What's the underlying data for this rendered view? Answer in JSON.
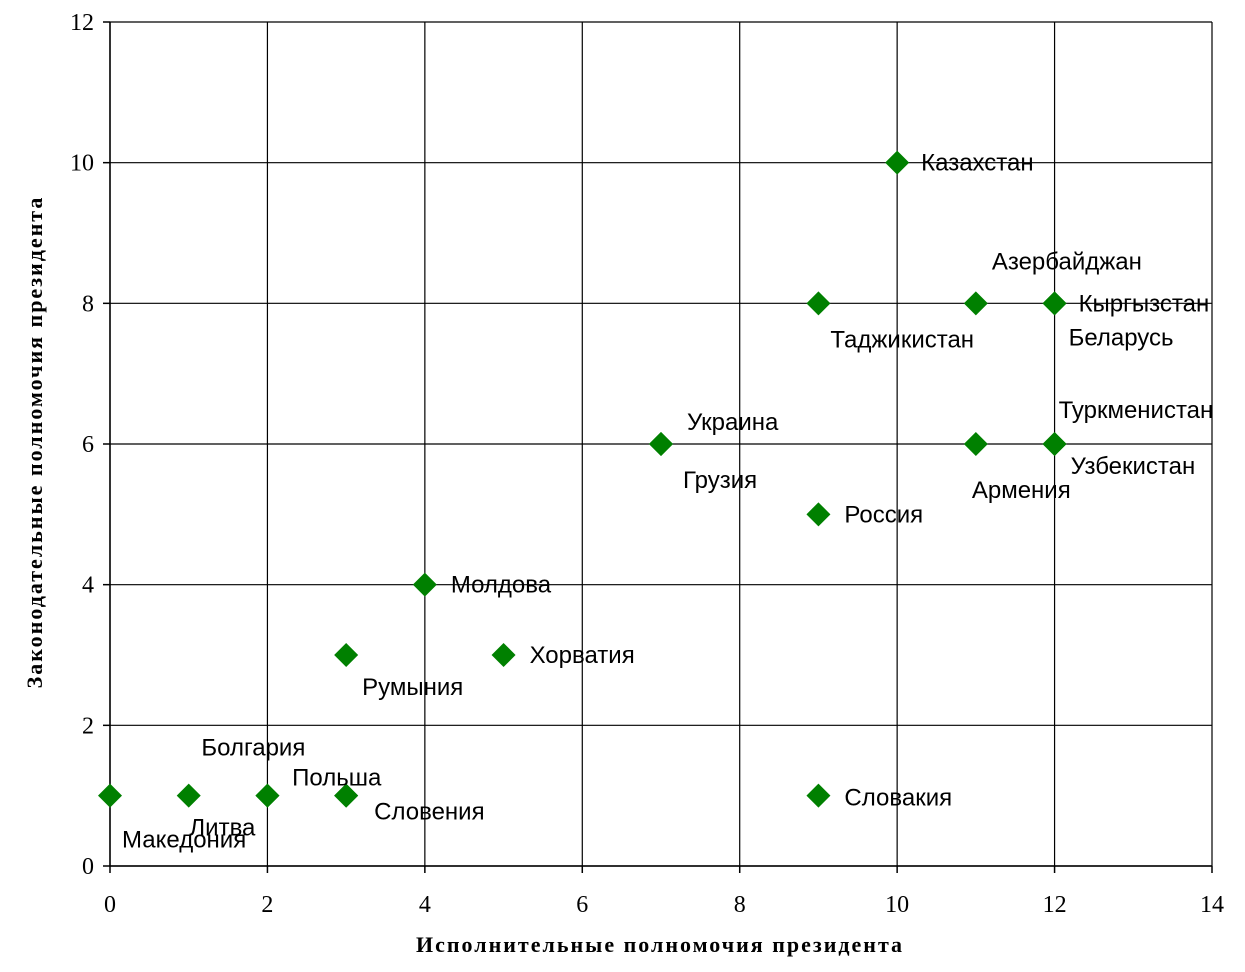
{
  "chart_data": {
    "type": "scatter",
    "title": "",
    "xlabel": "Исполнительные полномочия президента",
    "ylabel": "Законодательные полномочия президента",
    "xlim": [
      0,
      14
    ],
    "ylim": [
      0,
      12
    ],
    "xticks": [
      0,
      2,
      4,
      6,
      8,
      10,
      12,
      14
    ],
    "yticks": [
      0,
      2,
      4,
      6,
      8,
      10,
      12
    ],
    "grid": true,
    "marker": "diamond",
    "marker_color": "#008000",
    "points": [
      {
        "label": "Казахстан",
        "x": 10,
        "y": 10
      },
      {
        "label": "Азербайджан",
        "x": 11,
        "y": 8
      },
      {
        "label": "Таджикистан",
        "x": 9,
        "y": 8
      },
      {
        "label": "Кыргызстан",
        "x": 12,
        "y": 8
      },
      {
        "label": "Беларусь",
        "x": 12,
        "y": 8
      },
      {
        "label": "Украина",
        "x": 7,
        "y": 6
      },
      {
        "label": "Грузия",
        "x": 7,
        "y": 6
      },
      {
        "label": "Туркменистан",
        "x": 12,
        "y": 6
      },
      {
        "label": "Узбекистан",
        "x": 12,
        "y": 6
      },
      {
        "label": "Армения",
        "x": 11,
        "y": 6
      },
      {
        "label": "Россия",
        "x": 9,
        "y": 5
      },
      {
        "label": "Молдова",
        "x": 4,
        "y": 4
      },
      {
        "label": "Хорватия",
        "x": 5,
        "y": 3
      },
      {
        "label": "Румыния",
        "x": 3,
        "y": 3
      },
      {
        "label": "Болгария",
        "x": 2,
        "y": 1
      },
      {
        "label": "Польша",
        "x": 3,
        "y": 1
      },
      {
        "label": "Словения",
        "x": 3,
        "y": 1
      },
      {
        "label": "Литва",
        "x": 2,
        "y": 1
      },
      {
        "label": "Македония",
        "x": 0,
        "y": 1
      },
      {
        "label": "Словакия",
        "x": 9,
        "y": 1
      },
      {
        "label": "",
        "x": 1,
        "y": 1
      }
    ]
  }
}
